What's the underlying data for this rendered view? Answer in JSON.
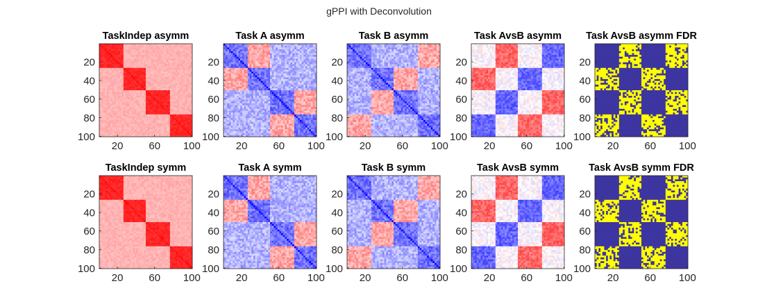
{
  "figure": {
    "suptitle": "gPPI with Deconvolution"
  },
  "colors": {
    "red": "#ff0000",
    "blue": "#0000ff",
    "white": "#ffffff",
    "fdr_sig": "#ffff00",
    "fdr_nonsig": "#3d35a0",
    "axis": "#262626"
  },
  "chart_data": [
    {
      "type": "heatmap",
      "title": "TaskIndep asymm",
      "size": 100,
      "xticks": [
        20,
        60,
        100
      ],
      "yticks": [
        20,
        40,
        60,
        80,
        100
      ],
      "colormap": "white-red",
      "block_pattern": "diagonal-blocks",
      "blocks": 4,
      "diag_value": 0.95,
      "within_block": 0.85,
      "between_block": 0.3
    },
    {
      "type": "heatmap",
      "title": "Task A asymm",
      "size": 100,
      "xticks": [
        20,
        60,
        100
      ],
      "yticks": [
        20,
        40,
        60,
        80,
        100
      ],
      "colormap": "blue-white-red",
      "block_pattern": "taskA",
      "blocks": 4
    },
    {
      "type": "heatmap",
      "title": "Task B asymm",
      "size": 100,
      "xticks": [
        20,
        60,
        100
      ],
      "yticks": [
        20,
        40,
        60,
        80,
        100
      ],
      "colormap": "blue-white-red",
      "block_pattern": "taskB",
      "blocks": 4
    },
    {
      "type": "heatmap",
      "title": "Task AvsB asymm",
      "size": 100,
      "xticks": [
        20,
        60,
        100
      ],
      "yticks": [
        20,
        40,
        60,
        80,
        100
      ],
      "colormap": "blue-white-red",
      "block_pattern": "checker",
      "blocks": 4
    },
    {
      "type": "heatmap",
      "title": "Task AvsB asymm FDR",
      "size": 100,
      "xticks": [
        20,
        60,
        100
      ],
      "yticks": [
        20,
        40,
        60,
        80,
        100
      ],
      "colormap": "binary",
      "block_pattern": "fdr",
      "blocks": 4
    },
    {
      "type": "heatmap",
      "title": "TaskIndep symm",
      "size": 100,
      "xticks": [
        20,
        60,
        100
      ],
      "yticks": [
        20,
        40,
        60,
        80,
        100
      ],
      "colormap": "white-red",
      "block_pattern": "diagonal-blocks",
      "blocks": 4,
      "diag_value": 0.95,
      "within_block": 0.85,
      "between_block": 0.3
    },
    {
      "type": "heatmap",
      "title": "Task A symm",
      "size": 100,
      "xticks": [
        20,
        60,
        100
      ],
      "yticks": [
        20,
        40,
        60,
        80,
        100
      ],
      "colormap": "blue-white-red",
      "block_pattern": "taskA",
      "blocks": 4
    },
    {
      "type": "heatmap",
      "title": "Task B symm",
      "size": 100,
      "xticks": [
        20,
        60,
        100
      ],
      "yticks": [
        20,
        40,
        60,
        80,
        100
      ],
      "colormap": "blue-white-red",
      "block_pattern": "taskB",
      "blocks": 4
    },
    {
      "type": "heatmap",
      "title": "Task AvsB symm",
      "size": 100,
      "xticks": [
        20,
        60,
        100
      ],
      "yticks": [
        20,
        40,
        60,
        80,
        100
      ],
      "colormap": "blue-white-red",
      "block_pattern": "checker",
      "blocks": 4
    },
    {
      "type": "heatmap",
      "title": "Task AvsB symm FDR",
      "size": 100,
      "xticks": [
        20,
        60,
        100
      ],
      "yticks": [
        20,
        40,
        60,
        80,
        100
      ],
      "colormap": "binary",
      "block_pattern": "fdr",
      "blocks": 4
    }
  ]
}
